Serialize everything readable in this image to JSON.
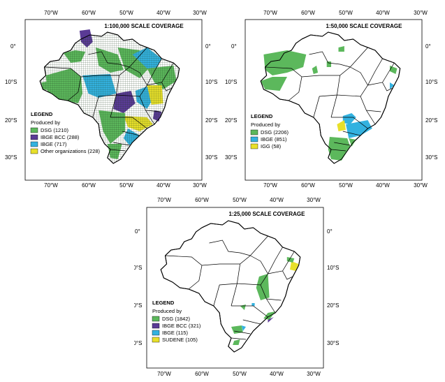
{
  "colors": {
    "dsg": "#5cb85c",
    "ibge_bcc": "#5a3a95",
    "ibge": "#33b2e0",
    "yellow": "#e8e02a",
    "border": "#000000"
  },
  "axis": {
    "top_lon": [
      "70°W",
      "60°W",
      "50°W",
      "40°W",
      "30°W"
    ],
    "bottom_lon": [
      "70°W",
      "60°W",
      "50°W",
      "40°W",
      "30°W"
    ],
    "lat_left": [
      "0°",
      "10°S",
      "20°S",
      "30°S"
    ],
    "lat_right": [
      "0°",
      "10°S",
      "20°S",
      "30°S"
    ]
  },
  "maps": [
    {
      "title": "1:100,000 SCALE COVERAGE",
      "legend_title": "LEGEND",
      "legend_sub": "Produced by",
      "legend": [
        {
          "label": "DSG (1210)",
          "color": "#5cb85c"
        },
        {
          "label": "IBGE BCC (288)",
          "color": "#5a3a95"
        },
        {
          "label": "IBGE (717)",
          "color": "#33b2e0"
        },
        {
          "label": "Other organizations (228)",
          "color": "#e8e02a"
        }
      ]
    },
    {
      "title": "1:50,000 SCALE COVERAGE",
      "legend_title": "LEGEND",
      "legend_sub": "Produced by",
      "legend": [
        {
          "label": "DSG (2206)",
          "color": "#5cb85c"
        },
        {
          "label": "IBGE (851)",
          "color": "#33b2e0"
        },
        {
          "label": "IGG (58)",
          "color": "#e8e02a"
        }
      ]
    },
    {
      "title": "1:25,000 SCALE COVERAGE",
      "legend_title": "LEGEND",
      "legend_sub": "Produced by",
      "legend": [
        {
          "label": "DSG (1842)",
          "color": "#5cb85c"
        },
        {
          "label": "IBGE BCC (321)",
          "color": "#5a3a95"
        },
        {
          "label": "IBGE (115)",
          "color": "#33b2e0"
        },
        {
          "label": "SUDENE (105)",
          "color": "#e8e02a"
        }
      ]
    }
  ]
}
